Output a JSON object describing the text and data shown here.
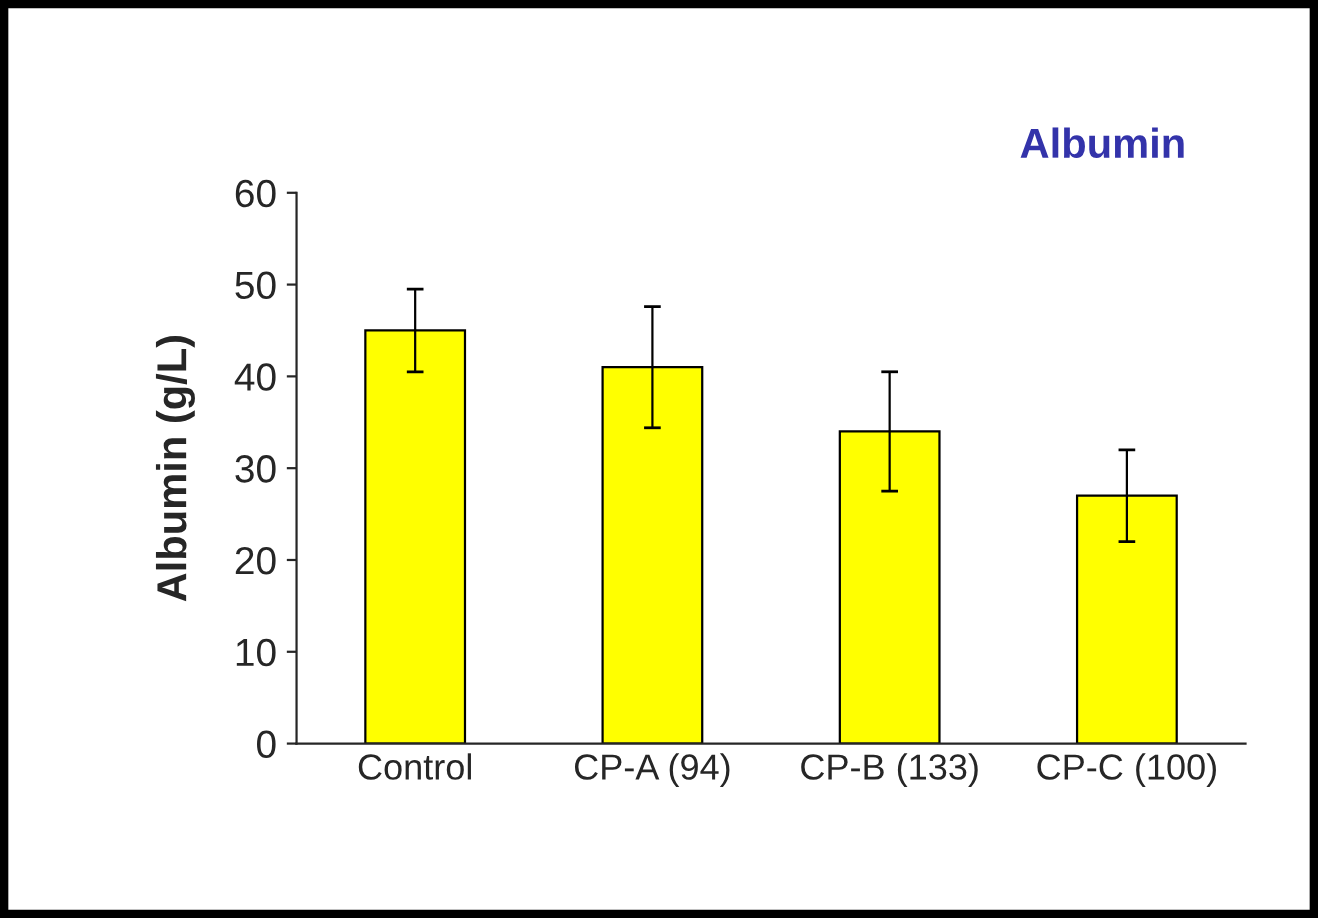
{
  "chart_data": {
    "type": "bar",
    "title": "Albumin",
    "ylabel": "Albumin (g/L)",
    "categories": [
      "Control",
      "CP-A (94)",
      "CP-B (133)",
      "CP-C (100)"
    ],
    "values": [
      45,
      41,
      34,
      27
    ],
    "errors": [
      4.5,
      6.6,
      6.5,
      5
    ],
    "color": "#ffff00",
    "ylim": [
      0,
      60
    ],
    "yticks": [
      0,
      10,
      20,
      30,
      40,
      50,
      60
    ],
    "grid": false,
    "legend": false
  }
}
